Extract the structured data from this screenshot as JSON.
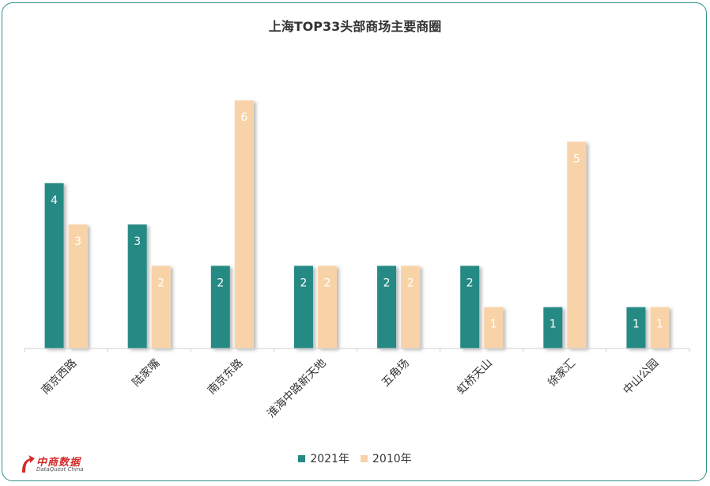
{
  "title": "上海TOP33头部商场主要商圈",
  "legend": [
    {
      "label": "2021年",
      "color": "#288a84"
    },
    {
      "label": "2010年",
      "color": "#f9d3a8"
    }
  ],
  "logo": {
    "cn": "中商数据",
    "en": "DataQuest China"
  },
  "chart_data": {
    "type": "bar",
    "categories": [
      "南京西路",
      "陆家嘴",
      "南京东路",
      "淮海中路新天地",
      "五角场",
      "虹桥天山",
      "徐家汇",
      "中山公园"
    ],
    "series": [
      {
        "name": "2021年",
        "values": [
          4,
          3,
          2,
          2,
          2,
          2,
          1,
          1
        ],
        "color": "#288a84"
      },
      {
        "name": "2010年",
        "values": [
          3,
          2,
          6,
          2,
          2,
          1,
          5,
          1
        ],
        "color": "#f9d3a8"
      }
    ],
    "ylim": [
      0,
      6
    ],
    "grid": false,
    "legend_position": "bottom"
  }
}
